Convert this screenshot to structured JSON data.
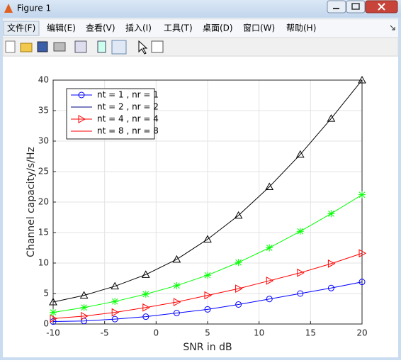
{
  "window": {
    "title": "Figure 1",
    "menu": [
      "文件(F)",
      "编辑(E)",
      "查看(V)",
      "插入(I)",
      "工具(T)",
      "桌面(D)",
      "窗口(W)",
      "帮助(H)"
    ]
  },
  "chart_data": {
    "type": "line",
    "xlabel": "SNR in dB",
    "ylabel": "Channel capacity/s/Hz",
    "x": [
      -10,
      -7,
      -4,
      -1,
      2,
      5,
      8,
      11,
      14,
      17,
      20
    ],
    "series": [
      {
        "name": "nt = 1 , nr = 1",
        "color": "#0000ff",
        "marker": "circle",
        "legend_color": "#0000ff",
        "legend_marker": "circle",
        "values": [
          0.4,
          0.5,
          0.8,
          1.2,
          1.8,
          2.4,
          3.2,
          4.1,
          5.0,
          5.9,
          6.9
        ]
      },
      {
        "name": "nt = 2 , nr = 2",
        "color": "#000000",
        "marker": "triangle-up",
        "legend_color": "#000080",
        "legend_marker": "none",
        "values": [
          3.6,
          4.7,
          6.2,
          8.1,
          10.6,
          13.9,
          17.8,
          22.5,
          27.8,
          33.7,
          40.0
        ]
      },
      {
        "name": "nt = 4 , nr = 4",
        "color": "#ff0000",
        "marker": "triangle-right",
        "legend_color": "#ff0000",
        "legend_marker": "triangle-right",
        "values": [
          0.9,
          1.3,
          1.9,
          2.7,
          3.6,
          4.7,
          5.8,
          7.1,
          8.4,
          9.9,
          11.6
        ]
      },
      {
        "name": "nt = 8 , nr = 8",
        "color": "#00ff00",
        "marker": "asterisk",
        "legend_color": "#ff0000",
        "legend_marker": "none",
        "values": [
          1.9,
          2.7,
          3.7,
          4.9,
          6.3,
          8.0,
          10.1,
          12.5,
          15.2,
          18.1,
          21.2
        ]
      }
    ],
    "xlim": [
      -10,
      20
    ],
    "xticks": [
      -10,
      -5,
      0,
      5,
      10,
      15,
      20
    ],
    "ylim": [
      0,
      40
    ],
    "yticks": [
      0,
      5,
      10,
      15,
      20,
      25,
      30,
      35,
      40
    ],
    "grid": true,
    "legend_position": "northwest"
  }
}
